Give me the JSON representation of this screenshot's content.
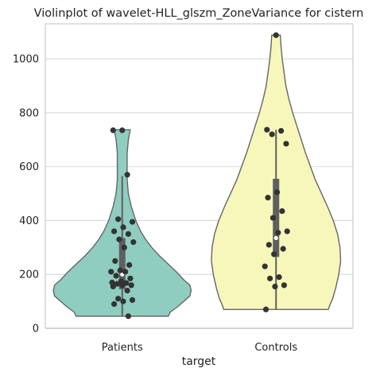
{
  "chart_data": {
    "type": "violin",
    "title": "Violinplot of wavelet-HLL_glszm_ZoneVariance for cistern",
    "xlabel": "target",
    "ylabel": "",
    "categories": [
      "Patients",
      "Controls"
    ],
    "ylim": [
      0,
      1130
    ],
    "yticks": [
      0,
      200,
      400,
      600,
      800,
      1000
    ],
    "grid": "horizontal",
    "colors": {
      "Patients": "#8ecdc0",
      "Controls": "#f7f7bb",
      "outline": "#666666",
      "points": "#333333",
      "box": "#5f5f5f",
      "grid": "#d9d9d9"
    },
    "violins": [
      {
        "category": "Patients",
        "min": 45,
        "max": 737,
        "box": {
          "q1": 145,
          "median": 200,
          "q3": 335,
          "whisker_low": 45,
          "whisker_high": 565
        },
        "density": [
          [
            45,
            0.75
          ],
          [
            60,
            0.78
          ],
          [
            80,
            0.9
          ],
          [
            100,
            1.0
          ],
          [
            120,
            1.1
          ],
          [
            140,
            1.12
          ],
          [
            160,
            1.1
          ],
          [
            180,
            1.0
          ],
          [
            210,
            0.88
          ],
          [
            240,
            0.74
          ],
          [
            270,
            0.6
          ],
          [
            300,
            0.48
          ],
          [
            330,
            0.38
          ],
          [
            360,
            0.3
          ],
          [
            400,
            0.22
          ],
          [
            450,
            0.15
          ],
          [
            500,
            0.1
          ],
          [
            550,
            0.08
          ],
          [
            600,
            0.08
          ],
          [
            650,
            0.08
          ],
          [
            700,
            0.1
          ],
          [
            737,
            0.13
          ]
        ],
        "points": [
          735,
          735,
          570,
          405,
          395,
          375,
          360,
          350,
          330,
          320,
          300,
          250,
          235,
          215,
          210,
          210,
          195,
          185,
          175,
          170,
          168,
          165,
          160,
          160,
          155,
          140,
          110,
          105,
          100,
          90,
          45
        ]
      },
      {
        "category": "Controls",
        "min": 70,
        "max": 1088,
        "box": {
          "q1": 265,
          "median": 335,
          "q3": 555,
          "whisker_low": 70,
          "whisker_high": 737
        },
        "density": [
          [
            70,
            0.85
          ],
          [
            90,
            0.88
          ],
          [
            110,
            0.92
          ],
          [
            150,
            0.97
          ],
          [
            200,
            1.02
          ],
          [
            250,
            1.05
          ],
          [
            300,
            1.04
          ],
          [
            350,
            1.0
          ],
          [
            400,
            0.93
          ],
          [
            450,
            0.84
          ],
          [
            500,
            0.74
          ],
          [
            550,
            0.64
          ],
          [
            600,
            0.56
          ],
          [
            650,
            0.48
          ],
          [
            700,
            0.41
          ],
          [
            750,
            0.34
          ],
          [
            800,
            0.27
          ],
          [
            850,
            0.21
          ],
          [
            900,
            0.16
          ],
          [
            950,
            0.13
          ],
          [
            1000,
            0.1
          ],
          [
            1050,
            0.08
          ],
          [
            1088,
            0.07
          ]
        ],
        "points": [
          1088,
          737,
          733,
          720,
          685,
          505,
          485,
          435,
          410,
          360,
          355,
          310,
          295,
          275,
          230,
          190,
          185,
          160,
          155,
          70
        ]
      }
    ]
  }
}
